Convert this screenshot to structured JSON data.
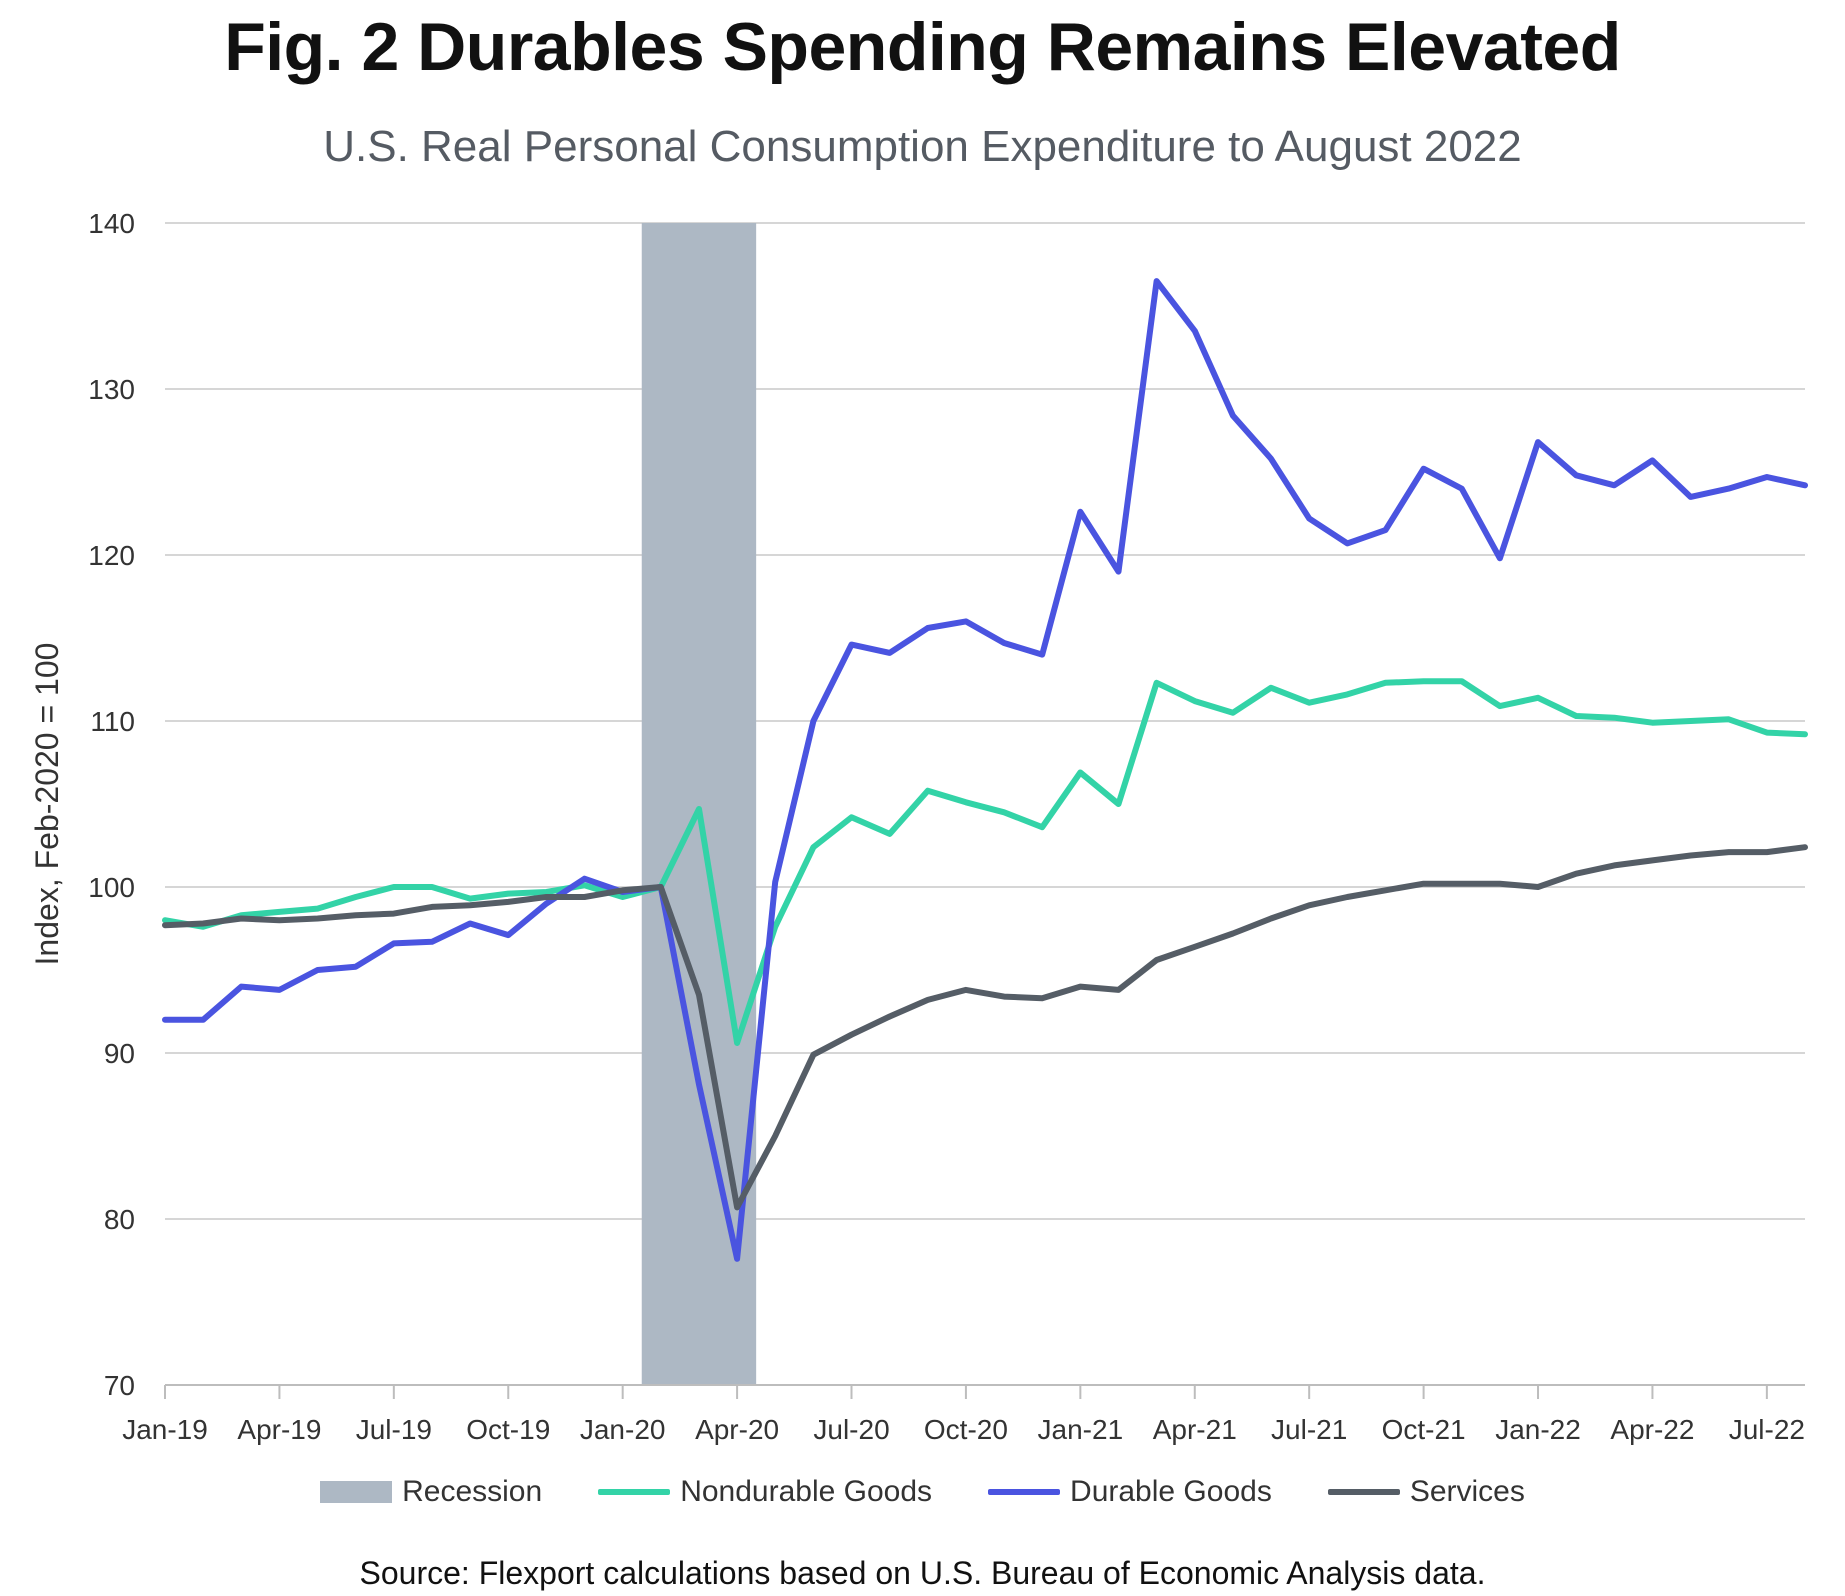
{
  "chart_data": {
    "type": "line",
    "title": "Fig. 2 Durables Spending Remains Elevated",
    "subtitle": "U.S. Real Personal Consumption Expenditure to August 2022",
    "ylabel": "Index, Feb-2020 = 100",
    "xlabel": "",
    "ylim": [
      70,
      140
    ],
    "yticks": [
      70,
      80,
      90,
      100,
      110,
      120,
      130,
      140
    ],
    "x_tick_labels": [
      "Jan-19",
      "Apr-19",
      "Jul-19",
      "Oct-19",
      "Jan-20",
      "Apr-20",
      "Jul-20",
      "Oct-20",
      "Jan-21",
      "Apr-21",
      "Jul-21",
      "Oct-21",
      "Jan-22",
      "Apr-22",
      "Jul-22"
    ],
    "x": [
      "Jan-19",
      "Feb-19",
      "Mar-19",
      "Apr-19",
      "May-19",
      "Jun-19",
      "Jul-19",
      "Aug-19",
      "Sep-19",
      "Oct-19",
      "Nov-19",
      "Dec-19",
      "Jan-20",
      "Feb-20",
      "Mar-20",
      "Apr-20",
      "May-20",
      "Jun-20",
      "Jul-20",
      "Aug-20",
      "Sep-20",
      "Oct-20",
      "Nov-20",
      "Dec-20",
      "Jan-21",
      "Feb-21",
      "Mar-21",
      "Apr-21",
      "May-21",
      "Jun-21",
      "Jul-21",
      "Aug-21",
      "Sep-21",
      "Oct-21",
      "Nov-21",
      "Dec-21",
      "Jan-22",
      "Feb-22",
      "Mar-22",
      "Apr-22",
      "May-22",
      "Jun-22",
      "Jul-22",
      "Aug-22"
    ],
    "recession": {
      "label": "Recession",
      "start": "Feb-20",
      "end": "Apr-20",
      "color": "#adb8c4"
    },
    "grid": "horizontal",
    "legend_position": "bottom",
    "series": [
      {
        "name": "Nondurable Goods",
        "color": "#33d3a7",
        "values": [
          98.0,
          97.6,
          98.3,
          98.5,
          98.7,
          99.4,
          100.0,
          100.0,
          99.3,
          99.6,
          99.7,
          100.1,
          99.4,
          100.0,
          104.7,
          90.6,
          97.6,
          102.4,
          104.2,
          103.2,
          105.8,
          105.1,
          104.5,
          103.6,
          106.9,
          105.0,
          112.3,
          111.2,
          110.5,
          112.0,
          111.1,
          111.6,
          112.3,
          112.4,
          112.4,
          110.9,
          111.4,
          110.3,
          110.2,
          109.9,
          110.0,
          110.1,
          109.3,
          109.2
        ]
      },
      {
        "name": "Durable Goods",
        "color": "#4a54e0",
        "values": [
          92.0,
          92.0,
          94.0,
          93.8,
          95.0,
          95.2,
          96.6,
          96.7,
          97.8,
          97.1,
          99.0,
          100.5,
          99.7,
          100.0,
          88.1,
          77.6,
          100.3,
          110.0,
          114.6,
          114.1,
          115.6,
          116.0,
          114.7,
          114.0,
          122.6,
          119.0,
          136.5,
          133.5,
          128.4,
          125.8,
          122.2,
          120.7,
          121.5,
          125.2,
          124.0,
          119.8,
          126.8,
          124.8,
          124.2,
          125.7,
          123.5,
          124.0,
          124.7,
          124.2
        ]
      },
      {
        "name": "Services",
        "color": "#555d66",
        "values": [
          97.7,
          97.8,
          98.1,
          98.0,
          98.1,
          98.3,
          98.4,
          98.8,
          98.9,
          99.1,
          99.4,
          99.4,
          99.8,
          100.0,
          93.5,
          80.7,
          85.0,
          89.9,
          91.1,
          92.2,
          93.2,
          93.8,
          93.4,
          93.3,
          94.0,
          93.8,
          95.6,
          96.4,
          97.2,
          98.1,
          98.9,
          99.4,
          99.8,
          100.2,
          100.2,
          100.2,
          100.0,
          100.8,
          101.3,
          101.6,
          101.9,
          102.1,
          102.1,
          102.4
        ]
      }
    ]
  },
  "source": "Source: Flexport calculations based on U.S. Bureau of Economic Analysis data."
}
